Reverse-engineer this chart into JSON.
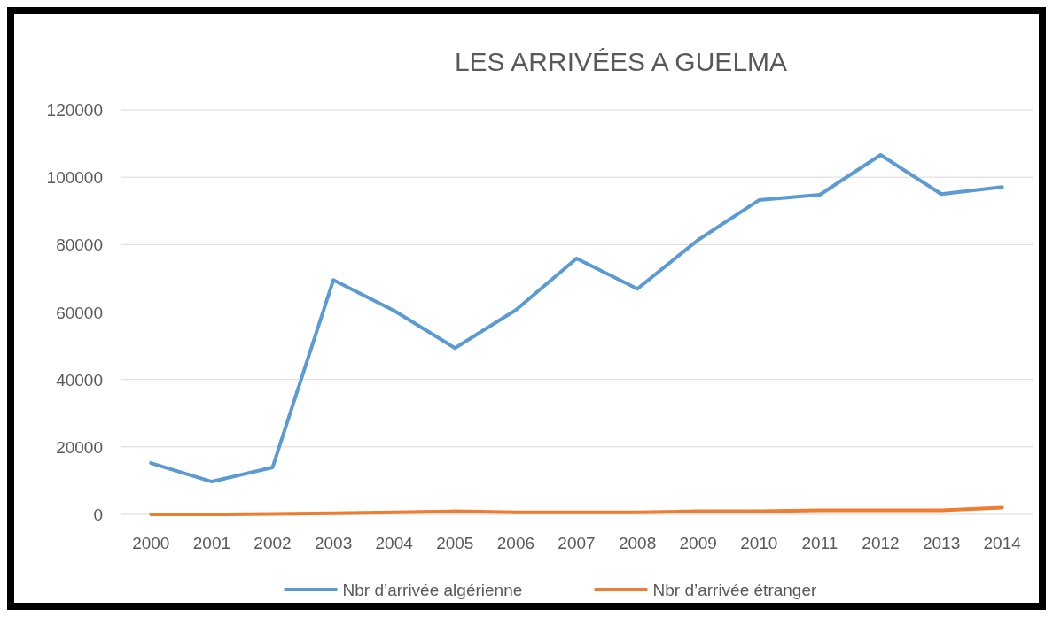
{
  "chart_data": {
    "type": "line",
    "title": "LES ARRIVÉES A GUELMA",
    "categories": [
      "2000",
      "2001",
      "2002",
      "2003",
      "2004",
      "2005",
      "2006",
      "2007",
      "2008",
      "2009",
      "2010",
      "2011",
      "2012",
      "2013",
      "2014"
    ],
    "series": [
      {
        "name": "Nbr d’arrivée algérienne",
        "color": "#5b9bd5",
        "values": [
          15200,
          9700,
          13900,
          69500,
          60400,
          49300,
          60600,
          75900,
          66900,
          81400,
          93200,
          94800,
          106600,
          95000,
          97100
        ]
      },
      {
        "name": "Nbr d’arrivée étranger",
        "color": "#ed7d31",
        "values": [
          0,
          0,
          100,
          300,
          600,
          900,
          600,
          600,
          600,
          900,
          900,
          1200,
          1200,
          1200,
          2000
        ]
      }
    ],
    "ylim": [
      0,
      120000
    ],
    "yticks": [
      0,
      20000,
      40000,
      60000,
      80000,
      100000,
      120000
    ],
    "grid": "y",
    "legend": "bottom",
    "marker": "none",
    "line_style": "solid"
  }
}
